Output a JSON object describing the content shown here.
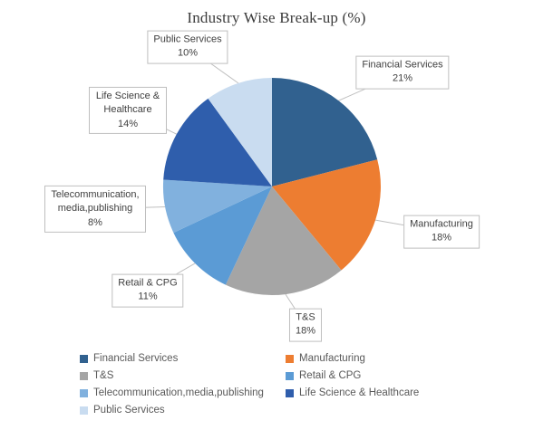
{
  "chart_data": {
    "type": "pie",
    "title": "Industry Wise Break-up (%)",
    "unit": "%",
    "categories": [
      "Financial Services",
      "Manufacturing",
      "T&S",
      "Retail & CPG",
      "Telecommunication,media,publishing",
      "Life Science & Healthcare",
      "Public Services"
    ],
    "values": [
      21,
      18,
      18,
      11,
      8,
      14,
      10
    ],
    "colors": [
      "#31618F",
      "#ED7D31",
      "#A5A5A5",
      "#5B9BD5",
      "#81B1DE",
      "#2F5EAC",
      "#C9DCF0"
    ],
    "data_labels": [
      "Financial Services 21%",
      "Manufacturing 18%",
      "T&S 18%",
      "Retail & CPG 11%",
      "Telecommunication,media,publishing 8%",
      "Life Science & Healthcare 14%",
      "Public Services 10%"
    ],
    "start_angle_deg": 0,
    "direction": "clockwise",
    "legend": {
      "position": "bottom",
      "entries": [
        "Financial Services",
        "Manufacturing",
        "T&S",
        "Retail & CPG",
        "Telecommunication,media,publishing",
        "Life Science & Healthcare",
        "Public Services"
      ]
    }
  }
}
